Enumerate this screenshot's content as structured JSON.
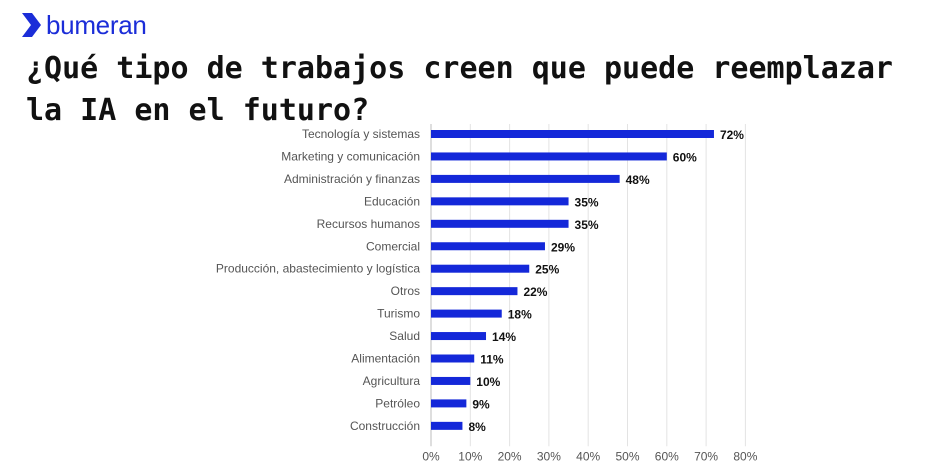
{
  "brand": {
    "name": "bumeran",
    "color": "#1b2dd8",
    "icon": "bumeran-chevron-icon"
  },
  "title": "¿Qué tipo de trabajos creen que puede reemplazar la IA en el futuro?",
  "chart_data": {
    "type": "bar",
    "orientation": "horizontal",
    "title": "¿Qué tipo de trabajos creen que puede reemplazar la IA en el futuro?",
    "xlabel": "",
    "ylabel": "",
    "xlim": [
      0,
      80
    ],
    "grid": true,
    "bar_color": "#1428d9",
    "value_suffix": "%",
    "categories": [
      "Tecnología y sistemas",
      "Marketing y comunicación",
      "Administración y finanzas",
      "Educación",
      "Recursos humanos",
      "Comercial",
      "Producción, abastecimiento y logística",
      "Otros",
      "Turismo",
      "Salud",
      "Alimentación",
      "Agricultura",
      "Petróleo",
      "Construcción"
    ],
    "values": [
      72,
      60,
      48,
      35,
      35,
      29,
      25,
      22,
      18,
      14,
      11,
      10,
      9,
      8
    ],
    "ticks": [
      "0%",
      "10%",
      "20%",
      "30%",
      "40%",
      "50%",
      "60%",
      "70%",
      "80%"
    ]
  }
}
